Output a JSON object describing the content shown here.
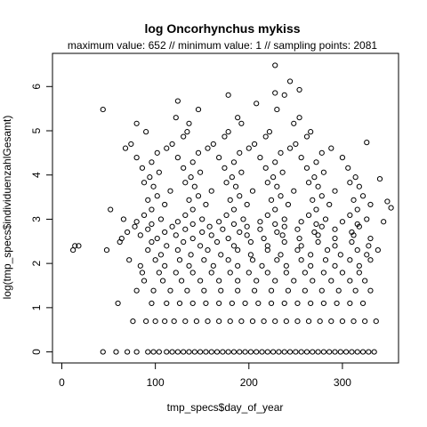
{
  "chart_data": {
    "type": "scatter",
    "title": "log Oncorhynchus mykiss",
    "subtitle": "maximum value: 652  //  minimum value: 1  // sampling points: 2081",
    "xlabel": "tmp_specs$day_of_year",
    "ylabel": "log(tmp_specs$individuenzahlGesamt)",
    "xlim": [
      -10,
      360
    ],
    "ylim": [
      -0.25,
      6.75
    ],
    "xticks": [
      0,
      100,
      200,
      300
    ],
    "yticks": [
      0,
      1,
      2,
      3,
      4,
      5,
      6
    ],
    "grid": false,
    "legend": "none",
    "marker": "open-circle",
    "point_color": "#000000",
    "points": [
      [
        44,
        0
      ],
      [
        58,
        0
      ],
      [
        70,
        0
      ],
      [
        80,
        0
      ],
      [
        92,
        0
      ],
      [
        98,
        0
      ],
      [
        104,
        0
      ],
      [
        112,
        0
      ],
      [
        118,
        0
      ],
      [
        124,
        0
      ],
      [
        130,
        0
      ],
      [
        136,
        0
      ],
      [
        142,
        0
      ],
      [
        148,
        0
      ],
      [
        154,
        0
      ],
      [
        160,
        0
      ],
      [
        166,
        0
      ],
      [
        172,
        0
      ],
      [
        178,
        0
      ],
      [
        184,
        0
      ],
      [
        190,
        0
      ],
      [
        196,
        0
      ],
      [
        202,
        0
      ],
      [
        208,
        0
      ],
      [
        214,
        0
      ],
      [
        220,
        0
      ],
      [
        226,
        0
      ],
      [
        232,
        0
      ],
      [
        238,
        0
      ],
      [
        244,
        0
      ],
      [
        250,
        0
      ],
      [
        256,
        0
      ],
      [
        262,
        0
      ],
      [
        268,
        0
      ],
      [
        274,
        0
      ],
      [
        280,
        0
      ],
      [
        286,
        0
      ],
      [
        292,
        0
      ],
      [
        298,
        0
      ],
      [
        304,
        0
      ],
      [
        310,
        0
      ],
      [
        316,
        0
      ],
      [
        322,
        0
      ],
      [
        328,
        0
      ],
      [
        334,
        0
      ],
      [
        76,
        0.693
      ],
      [
        90,
        0.693
      ],
      [
        100,
        0.693
      ],
      [
        110,
        0.693
      ],
      [
        120,
        0.693
      ],
      [
        132,
        0.693
      ],
      [
        144,
        0.693
      ],
      [
        156,
        0.693
      ],
      [
        168,
        0.693
      ],
      [
        180,
        0.693
      ],
      [
        192,
        0.693
      ],
      [
        204,
        0.693
      ],
      [
        216,
        0.693
      ],
      [
        228,
        0.693
      ],
      [
        240,
        0.693
      ],
      [
        252,
        0.693
      ],
      [
        264,
        0.693
      ],
      [
        276,
        0.693
      ],
      [
        288,
        0.693
      ],
      [
        300,
        0.693
      ],
      [
        312,
        0.693
      ],
      [
        324,
        0.693
      ],
      [
        336,
        0.693
      ],
      [
        60,
        1.099
      ],
      [
        96,
        1.099
      ],
      [
        112,
        1.099
      ],
      [
        126,
        1.099
      ],
      [
        140,
        1.099
      ],
      [
        154,
        1.099
      ],
      [
        168,
        1.099
      ],
      [
        182,
        1.099
      ],
      [
        196,
        1.099
      ],
      [
        210,
        1.099
      ],
      [
        224,
        1.099
      ],
      [
        238,
        1.099
      ],
      [
        252,
        1.099
      ],
      [
        266,
        1.099
      ],
      [
        280,
        1.099
      ],
      [
        294,
        1.099
      ],
      [
        308,
        1.099
      ],
      [
        322,
        1.099
      ],
      [
        80,
        1.386
      ],
      [
        98,
        1.386
      ],
      [
        116,
        1.386
      ],
      [
        134,
        1.386
      ],
      [
        152,
        1.386
      ],
      [
        170,
        1.386
      ],
      [
        188,
        1.386
      ],
      [
        206,
        1.386
      ],
      [
        224,
        1.386
      ],
      [
        242,
        1.386
      ],
      [
        260,
        1.386
      ],
      [
        278,
        1.386
      ],
      [
        296,
        1.386
      ],
      [
        314,
        1.386
      ],
      [
        330,
        1.386
      ],
      [
        88,
        1.609
      ],
      [
        108,
        1.609
      ],
      [
        128,
        1.609
      ],
      [
        148,
        1.609
      ],
      [
        168,
        1.609
      ],
      [
        188,
        1.609
      ],
      [
        208,
        1.609
      ],
      [
        228,
        1.609
      ],
      [
        248,
        1.609
      ],
      [
        268,
        1.609
      ],
      [
        288,
        1.609
      ],
      [
        308,
        1.609
      ],
      [
        324,
        1.609
      ],
      [
        86,
        1.792
      ],
      [
        104,
        1.792
      ],
      [
        122,
        1.792
      ],
      [
        140,
        1.792
      ],
      [
        160,
        1.792
      ],
      [
        180,
        1.792
      ],
      [
        200,
        1.792
      ],
      [
        220,
        1.792
      ],
      [
        240,
        1.792
      ],
      [
        260,
        1.792
      ],
      [
        280,
        1.792
      ],
      [
        300,
        1.792
      ],
      [
        318,
        1.792
      ],
      [
        84,
        1.946
      ],
      [
        110,
        1.946
      ],
      [
        136,
        1.946
      ],
      [
        162,
        1.946
      ],
      [
        188,
        1.946
      ],
      [
        214,
        1.946
      ],
      [
        240,
        1.946
      ],
      [
        266,
        1.946
      ],
      [
        292,
        1.946
      ],
      [
        318,
        1.946
      ],
      [
        72,
        2.079
      ],
      [
        100,
        2.079
      ],
      [
        126,
        2.079
      ],
      [
        152,
        2.079
      ],
      [
        178,
        2.079
      ],
      [
        204,
        2.079
      ],
      [
        230,
        2.079
      ],
      [
        256,
        2.079
      ],
      [
        282,
        2.079
      ],
      [
        308,
        2.079
      ],
      [
        330,
        2.079
      ],
      [
        106,
        2.197
      ],
      [
        138,
        2.197
      ],
      [
        170,
        2.197
      ],
      [
        202,
        2.197
      ],
      [
        234,
        2.197
      ],
      [
        266,
        2.197
      ],
      [
        298,
        2.197
      ],
      [
        326,
        2.197
      ],
      [
        12,
        2.303
      ],
      [
        18,
        2.398
      ],
      [
        48,
        2.303
      ],
      [
        92,
        2.303
      ],
      [
        124,
        2.303
      ],
      [
        156,
        2.303
      ],
      [
        188,
        2.303
      ],
      [
        220,
        2.303
      ],
      [
        252,
        2.303
      ],
      [
        284,
        2.303
      ],
      [
        316,
        2.303
      ],
      [
        338,
        2.303
      ],
      [
        14,
        2.398
      ],
      [
        112,
        2.398
      ],
      [
        148,
        2.398
      ],
      [
        184,
        2.398
      ],
      [
        220,
        2.398
      ],
      [
        256,
        2.398
      ],
      [
        292,
        2.398
      ],
      [
        328,
        2.398
      ],
      [
        62,
        2.485
      ],
      [
        96,
        2.485
      ],
      [
        130,
        2.485
      ],
      [
        166,
        2.485
      ],
      [
        202,
        2.485
      ],
      [
        238,
        2.485
      ],
      [
        274,
        2.485
      ],
      [
        310,
        2.485
      ],
      [
        64,
        2.565
      ],
      [
        102,
        2.565
      ],
      [
        140,
        2.565
      ],
      [
        178,
        2.565
      ],
      [
        216,
        2.565
      ],
      [
        254,
        2.565
      ],
      [
        292,
        2.565
      ],
      [
        330,
        2.565
      ],
      [
        84,
        2.639
      ],
      [
        122,
        2.639
      ],
      [
        160,
        2.639
      ],
      [
        198,
        2.639
      ],
      [
        236,
        2.639
      ],
      [
        274,
        2.639
      ],
      [
        312,
        2.639
      ],
      [
        70,
        2.708
      ],
      [
        110,
        2.708
      ],
      [
        150,
        2.708
      ],
      [
        190,
        2.708
      ],
      [
        230,
        2.708
      ],
      [
        270,
        2.708
      ],
      [
        310,
        2.708
      ],
      [
        92,
        2.773
      ],
      [
        132,
        2.773
      ],
      [
        172,
        2.773
      ],
      [
        212,
        2.773
      ],
      [
        252,
        2.773
      ],
      [
        292,
        2.773
      ],
      [
        78,
        2.833
      ],
      [
        118,
        2.833
      ],
      [
        158,
        2.833
      ],
      [
        198,
        2.833
      ],
      [
        238,
        2.833
      ],
      [
        278,
        2.833
      ],
      [
        318,
        2.833
      ],
      [
        96,
        2.89
      ],
      [
        140,
        2.89
      ],
      [
        184,
        2.89
      ],
      [
        228,
        2.89
      ],
      [
        272,
        2.89
      ],
      [
        316,
        2.89
      ],
      [
        80,
        2.944
      ],
      [
        124,
        2.944
      ],
      [
        168,
        2.944
      ],
      [
        212,
        2.944
      ],
      [
        256,
        2.944
      ],
      [
        300,
        2.944
      ],
      [
        344,
        2.944
      ],
      [
        66,
        3.0
      ],
      [
        106,
        3.0
      ],
      [
        150,
        3.0
      ],
      [
        194,
        3.0
      ],
      [
        238,
        3.0
      ],
      [
        282,
        3.0
      ],
      [
        326,
        3.0
      ],
      [
        88,
        3.091
      ],
      [
        132,
        3.091
      ],
      [
        176,
        3.091
      ],
      [
        220,
        3.091
      ],
      [
        264,
        3.091
      ],
      [
        308,
        3.091
      ],
      [
        52,
        3.219
      ],
      [
        96,
        3.219
      ],
      [
        140,
        3.219
      ],
      [
        184,
        3.219
      ],
      [
        228,
        3.219
      ],
      [
        272,
        3.219
      ],
      [
        316,
        3.219
      ],
      [
        352,
        3.258
      ],
      [
        110,
        3.332
      ],
      [
        154,
        3.332
      ],
      [
        198,
        3.332
      ],
      [
        242,
        3.332
      ],
      [
        286,
        3.332
      ],
      [
        330,
        3.332
      ],
      [
        92,
        3.434
      ],
      [
        136,
        3.434
      ],
      [
        180,
        3.434
      ],
      [
        224,
        3.434
      ],
      [
        268,
        3.434
      ],
      [
        312,
        3.434
      ],
      [
        348,
        3.401
      ],
      [
        102,
        3.526
      ],
      [
        146,
        3.526
      ],
      [
        190,
        3.526
      ],
      [
        234,
        3.526
      ],
      [
        278,
        3.526
      ],
      [
        322,
        3.526
      ],
      [
        116,
        3.638
      ],
      [
        160,
        3.638
      ],
      [
        204,
        3.638
      ],
      [
        248,
        3.638
      ],
      [
        292,
        3.638
      ],
      [
        98,
        3.738
      ],
      [
        142,
        3.738
      ],
      [
        186,
        3.738
      ],
      [
        230,
        3.738
      ],
      [
        274,
        3.738
      ],
      [
        318,
        3.738
      ],
      [
        88,
        3.829
      ],
      [
        132,
        3.829
      ],
      [
        176,
        3.829
      ],
      [
        220,
        3.829
      ],
      [
        264,
        3.829
      ],
      [
        308,
        3.829
      ],
      [
        94,
        3.951
      ],
      [
        138,
        3.951
      ],
      [
        182,
        3.951
      ],
      [
        226,
        3.951
      ],
      [
        270,
        3.951
      ],
      [
        314,
        3.951
      ],
      [
        340,
        3.912
      ],
      [
        104,
        4.06
      ],
      [
        148,
        4.06
      ],
      [
        192,
        4.06
      ],
      [
        236,
        4.06
      ],
      [
        280,
        4.06
      ],
      [
        86,
        4.159
      ],
      [
        130,
        4.159
      ],
      [
        174,
        4.159
      ],
      [
        218,
        4.159
      ],
      [
        262,
        4.159
      ],
      [
        306,
        4.159
      ],
      [
        96,
        4.29
      ],
      [
        140,
        4.29
      ],
      [
        184,
        4.29
      ],
      [
        228,
        4.29
      ],
      [
        272,
        4.29
      ],
      [
        80,
        4.394
      ],
      [
        124,
        4.394
      ],
      [
        168,
        4.394
      ],
      [
        212,
        4.394
      ],
      [
        256,
        4.394
      ],
      [
        300,
        4.394
      ],
      [
        102,
        4.5
      ],
      [
        146,
        4.5
      ],
      [
        190,
        4.5
      ],
      [
        234,
        4.5
      ],
      [
        278,
        4.5
      ],
      [
        68,
        4.605
      ],
      [
        112,
        4.605
      ],
      [
        156,
        4.605
      ],
      [
        200,
        4.605
      ],
      [
        244,
        4.605
      ],
      [
        288,
        4.605
      ],
      [
        74,
        4.7
      ],
      [
        118,
        4.7
      ],
      [
        162,
        4.7
      ],
      [
        206,
        4.7
      ],
      [
        250,
        4.7
      ],
      [
        326,
        4.736
      ],
      [
        130,
        4.868
      ],
      [
        174,
        4.868
      ],
      [
        218,
        4.868
      ],
      [
        262,
        4.868
      ],
      [
        90,
        4.977
      ],
      [
        134,
        4.977
      ],
      [
        178,
        4.977
      ],
      [
        222,
        4.977
      ],
      [
        266,
        4.977
      ],
      [
        80,
        5.165
      ],
      [
        136,
        5.165
      ],
      [
        192,
        5.165
      ],
      [
        248,
        5.165
      ],
      [
        122,
        5.298
      ],
      [
        188,
        5.298
      ],
      [
        254,
        5.298
      ],
      [
        44,
        5.481
      ],
      [
        146,
        5.481
      ],
      [
        230,
        5.481
      ],
      [
        124,
        5.673
      ],
      [
        178,
        5.808
      ],
      [
        208,
        5.617
      ],
      [
        238,
        5.808
      ],
      [
        254,
        5.927
      ],
      [
        228,
        5.855
      ],
      [
        244,
        6.118
      ],
      [
        228,
        6.48
      ]
    ]
  }
}
